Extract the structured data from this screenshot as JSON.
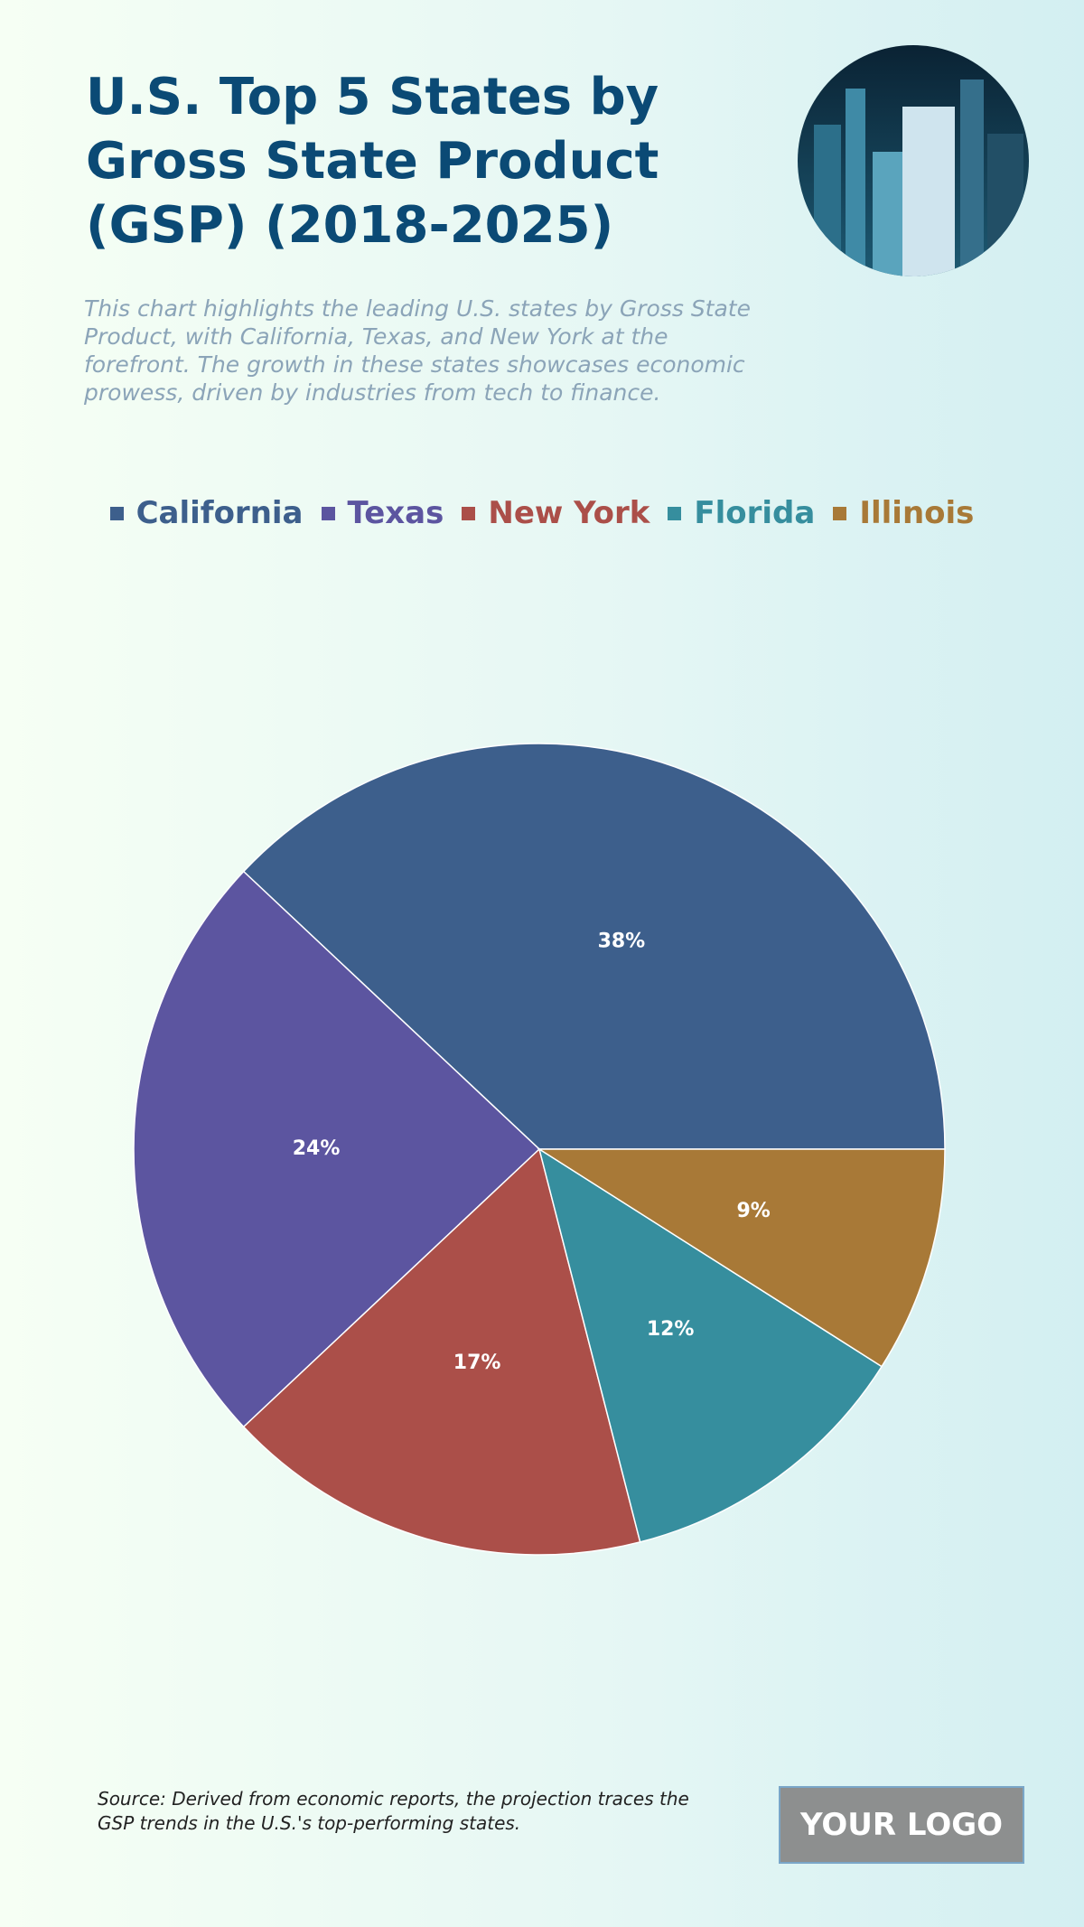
{
  "chart_data": {
    "type": "pie",
    "title": "U.S. Top 5 States by Gross State Product (GSP) (2018-2025)",
    "subtitle": "This chart highlights the leading U.S. states by Gross State Product, with California, Texas, and New York at the forefront. The growth in these states showcases economic prowess, driven by industries from tech to finance.",
    "categories": [
      "California",
      "Texas",
      "New York",
      "Florida",
      "Illinois"
    ],
    "values": [
      38,
      24,
      17,
      12,
      9
    ],
    "value_labels": [
      "38%",
      "24%",
      "17%",
      "12%",
      "9%"
    ],
    "colors": [
      "#3d5f8c",
      "#5c55a0",
      "#ab4f49",
      "#368e9e",
      "#a87937"
    ],
    "source": "Source: Derived from economic reports, the projection traces the GSP trends in the U.S.'s top-performing states.",
    "logo": "YOUR LOGO"
  }
}
